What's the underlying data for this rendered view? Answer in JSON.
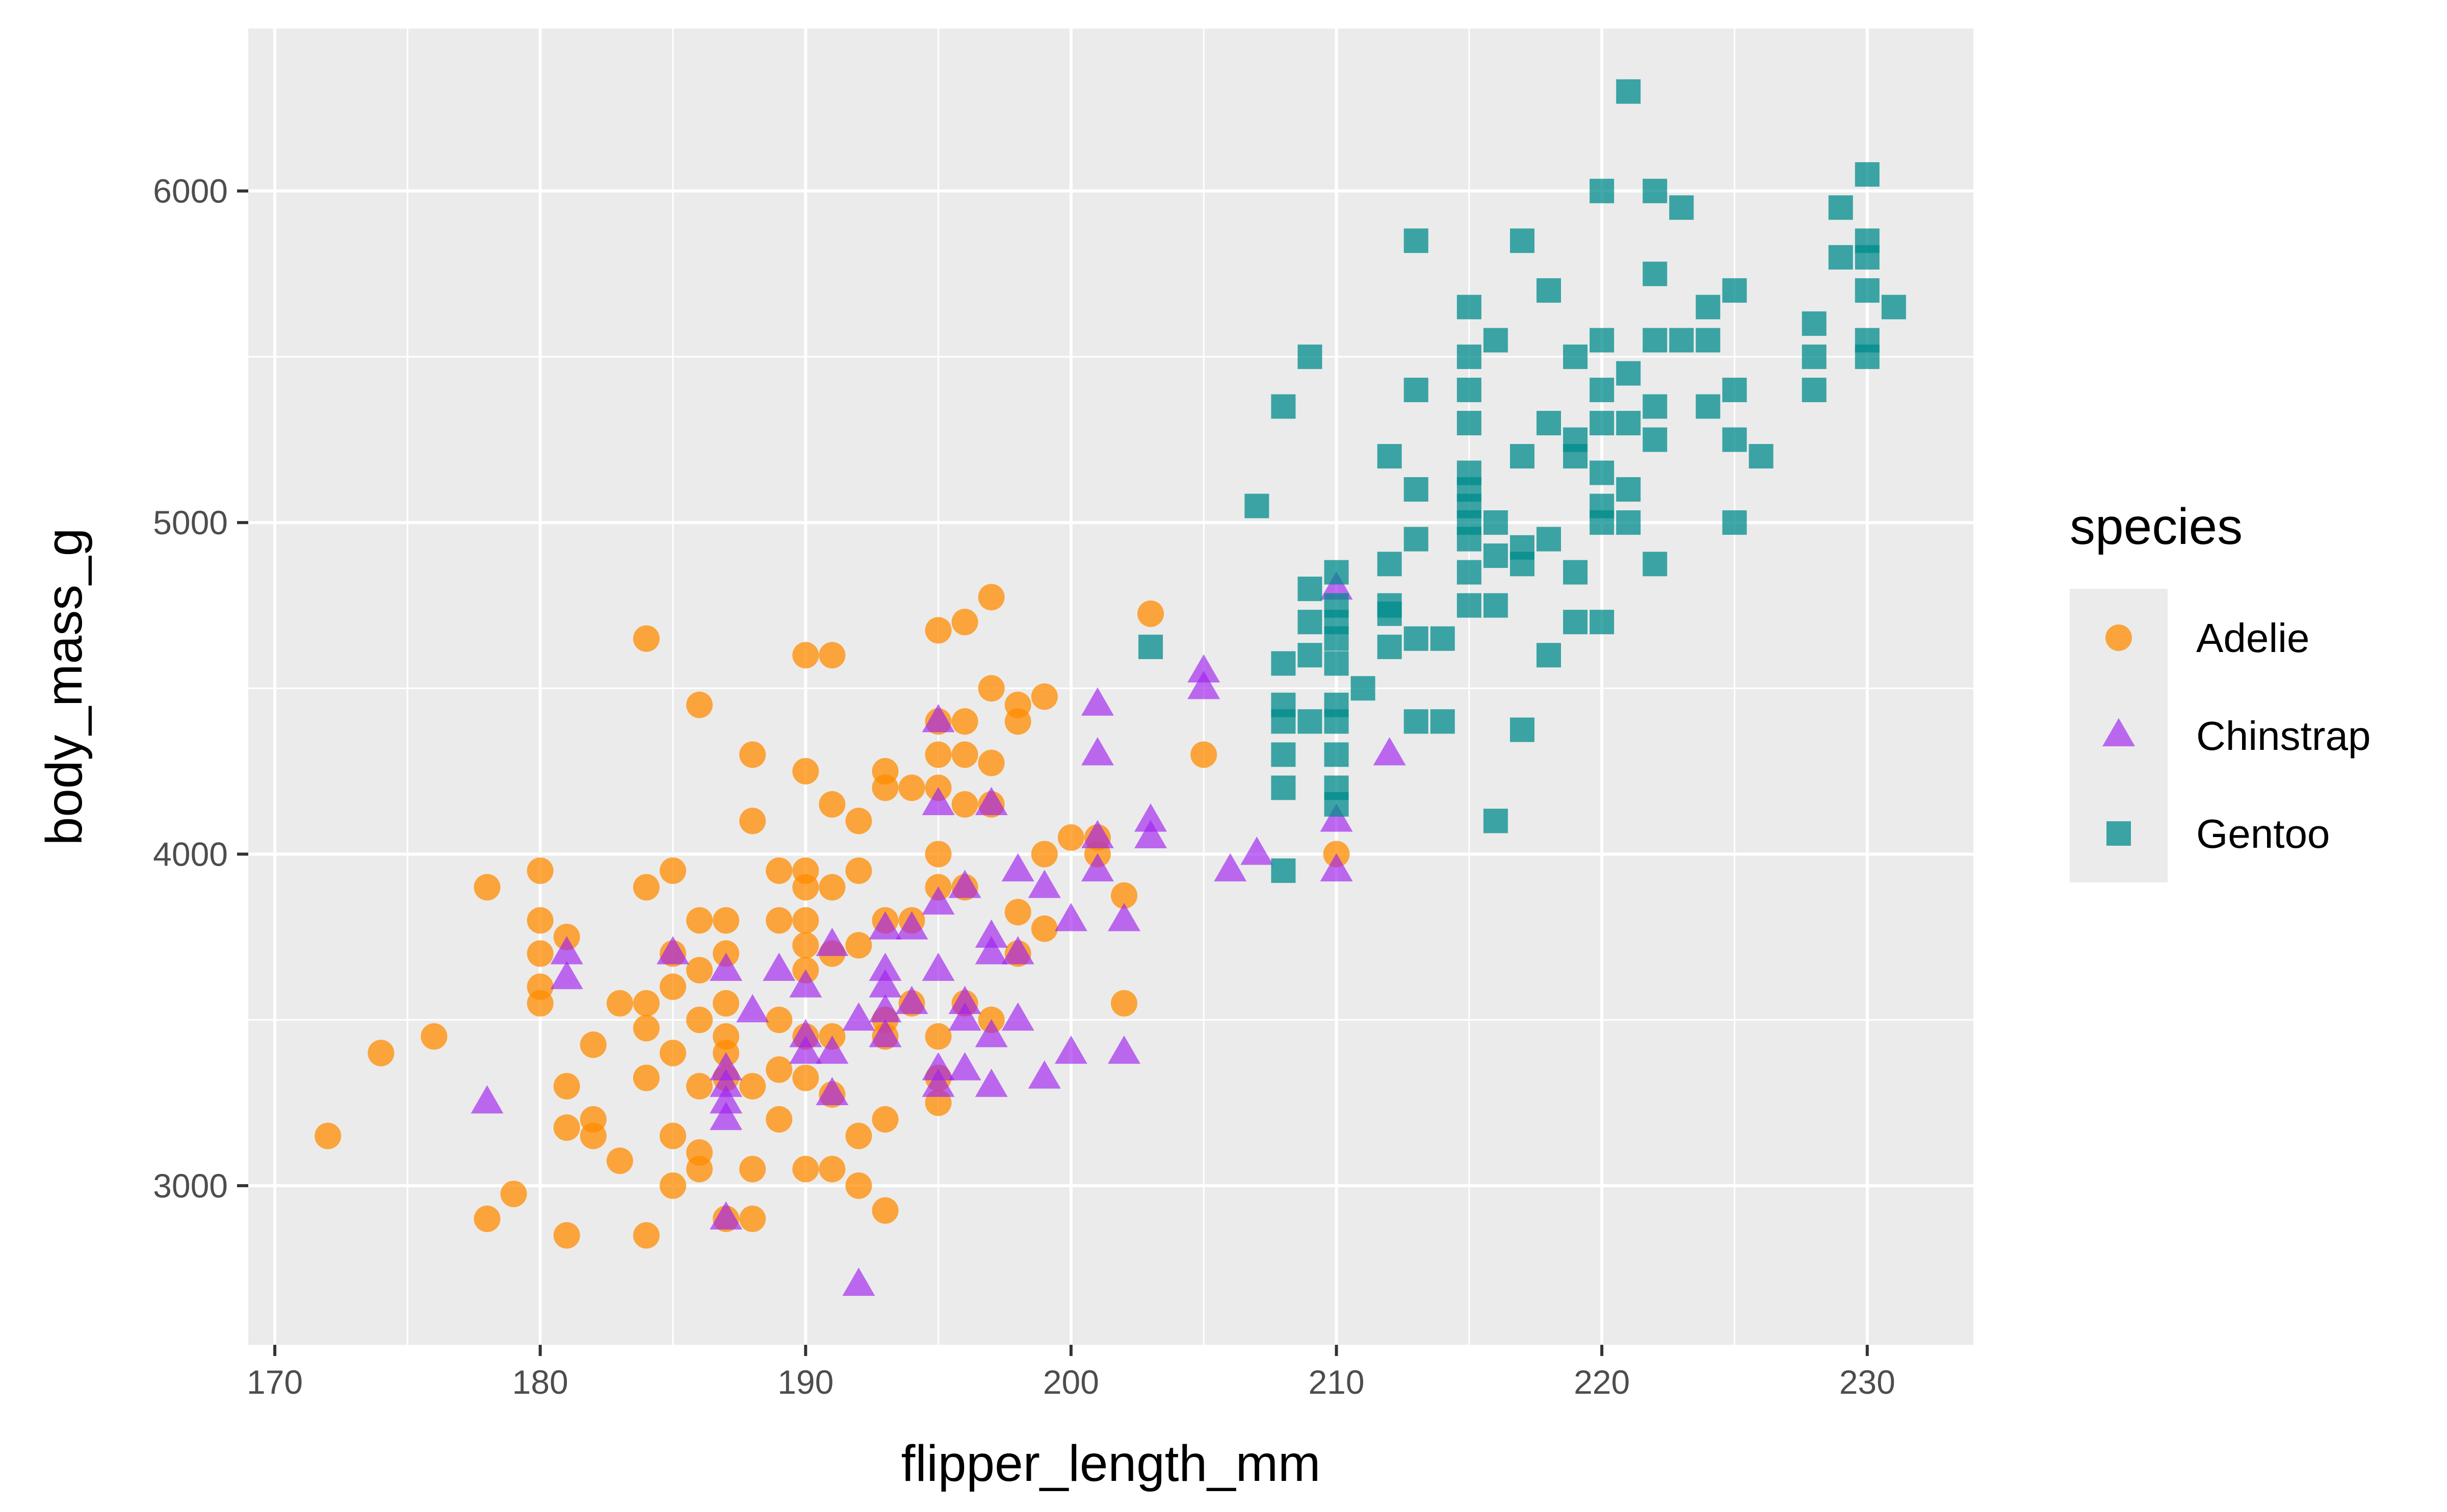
{
  "chart_data": {
    "type": "scatter",
    "title": "",
    "xlabel": "flipper_length_mm",
    "ylabel": "body_mass_g",
    "xlim": [
      169,
      234
    ],
    "ylim": [
      2520,
      6490
    ],
    "x_ticks": [
      170,
      180,
      190,
      200,
      210,
      220,
      230
    ],
    "y_ticks": [
      3000,
      4000,
      5000,
      6000
    ],
    "grid": true,
    "legend": {
      "title": "species",
      "position": "right"
    },
    "series": [
      {
        "name": "Adelie",
        "shape": "circle",
        "color": "#FF8C00",
        "points": [
          [
            172,
            3150
          ],
          [
            174,
            3400
          ],
          [
            176,
            3450
          ],
          [
            178,
            3900
          ],
          [
            178,
            2900
          ],
          [
            179,
            2975
          ],
          [
            180,
            3950
          ],
          [
            180,
            3800
          ],
          [
            180,
            3700
          ],
          [
            180,
            3600
          ],
          [
            180,
            3550
          ],
          [
            181,
            3750
          ],
          [
            181,
            3300
          ],
          [
            181,
            3175
          ],
          [
            181,
            2850
          ],
          [
            182,
            3425
          ],
          [
            182,
            3200
          ],
          [
            182,
            3150
          ],
          [
            183,
            3550
          ],
          [
            183,
            3075
          ],
          [
            184,
            4650
          ],
          [
            184,
            3900
          ],
          [
            184,
            3550
          ],
          [
            184,
            3475
          ],
          [
            184,
            3325
          ],
          [
            184,
            2850
          ],
          [
            185,
            3950
          ],
          [
            185,
            3700
          ],
          [
            185,
            3600
          ],
          [
            185,
            3400
          ],
          [
            185,
            3150
          ],
          [
            185,
            3000
          ],
          [
            186,
            4450
          ],
          [
            186,
            3800
          ],
          [
            186,
            3650
          ],
          [
            186,
            3500
          ],
          [
            186,
            3300
          ],
          [
            186,
            3100
          ],
          [
            186,
            3050
          ],
          [
            187,
            3800
          ],
          [
            187,
            3700
          ],
          [
            187,
            3550
          ],
          [
            187,
            3450
          ],
          [
            187,
            3400
          ],
          [
            187,
            3325
          ],
          [
            187,
            2900
          ],
          [
            188,
            4300
          ],
          [
            188,
            4100
          ],
          [
            188,
            3300
          ],
          [
            188,
            3050
          ],
          [
            188,
            2900
          ],
          [
            189,
            3950
          ],
          [
            189,
            3800
          ],
          [
            189,
            3500
          ],
          [
            189,
            3350
          ],
          [
            189,
            3200
          ],
          [
            190,
            4600
          ],
          [
            190,
            4250
          ],
          [
            190,
            3950
          ],
          [
            190,
            3900
          ],
          [
            190,
            3800
          ],
          [
            190,
            3725
          ],
          [
            190,
            3650
          ],
          [
            190,
            3450
          ],
          [
            190,
            3325
          ],
          [
            190,
            3050
          ],
          [
            191,
            4600
          ],
          [
            191,
            4150
          ],
          [
            191,
            3900
          ],
          [
            191,
            3700
          ],
          [
            191,
            3450
          ],
          [
            191,
            3275
          ],
          [
            191,
            3050
          ],
          [
            192,
            4100
          ],
          [
            192,
            3950
          ],
          [
            192,
            3725
          ],
          [
            192,
            3150
          ],
          [
            192,
            3000
          ],
          [
            193,
            4250
          ],
          [
            193,
            4200
          ],
          [
            193,
            3800
          ],
          [
            193,
            3500
          ],
          [
            193,
            3450
          ],
          [
            193,
            3200
          ],
          [
            193,
            2925
          ],
          [
            194,
            4200
          ],
          [
            194,
            3800
          ],
          [
            194,
            3550
          ],
          [
            195,
            4675
          ],
          [
            195,
            4400
          ],
          [
            195,
            4300
          ],
          [
            195,
            4200
          ],
          [
            195,
            4000
          ],
          [
            195,
            3900
          ],
          [
            195,
            3450
          ],
          [
            195,
            3325
          ],
          [
            195,
            3250
          ],
          [
            196,
            4700
          ],
          [
            196,
            4400
          ],
          [
            196,
            4300
          ],
          [
            196,
            4150
          ],
          [
            196,
            3900
          ],
          [
            196,
            3550
          ],
          [
            197,
            4775
          ],
          [
            197,
            4500
          ],
          [
            197,
            4275
          ],
          [
            197,
            4150
          ],
          [
            197,
            3500
          ],
          [
            198,
            4400
          ],
          [
            198,
            4450
          ],
          [
            198,
            3825
          ],
          [
            198,
            3700
          ],
          [
            199,
            4475
          ],
          [
            199,
            3775
          ],
          [
            199,
            4000
          ],
          [
            200,
            4050
          ],
          [
            201,
            4050
          ],
          [
            201,
            4000
          ],
          [
            202,
            3875
          ],
          [
            202,
            3550
          ],
          [
            203,
            4725
          ],
          [
            205,
            4300
          ],
          [
            210,
            4000
          ]
        ]
      },
      {
        "name": "Chinstrap",
        "shape": "triangle",
        "color": "#A020F0",
        "points": [
          [
            178,
            3250
          ],
          [
            181,
            3700
          ],
          [
            181,
            3625
          ],
          [
            185,
            3700
          ],
          [
            187,
            3650
          ],
          [
            187,
            3350
          ],
          [
            187,
            3300
          ],
          [
            187,
            3250
          ],
          [
            187,
            3200
          ],
          [
            187,
            2900
          ],
          [
            188,
            3525
          ],
          [
            189,
            3650
          ],
          [
            190,
            3600
          ],
          [
            190,
            3450
          ],
          [
            190,
            3400
          ],
          [
            191,
            3725
          ],
          [
            191,
            3400
          ],
          [
            191,
            3275
          ],
          [
            192,
            3500
          ],
          [
            192,
            2700
          ],
          [
            193,
            3775
          ],
          [
            193,
            3650
          ],
          [
            193,
            3600
          ],
          [
            193,
            3525
          ],
          [
            193,
            3450
          ],
          [
            194,
            3775
          ],
          [
            194,
            3550
          ],
          [
            195,
            4400
          ],
          [
            195,
            4150
          ],
          [
            195,
            3850
          ],
          [
            195,
            3650
          ],
          [
            195,
            3350
          ],
          [
            195,
            3300
          ],
          [
            196,
            3900
          ],
          [
            196,
            3550
          ],
          [
            196,
            3500
          ],
          [
            196,
            3350
          ],
          [
            197,
            4150
          ],
          [
            197,
            3750
          ],
          [
            197,
            3700
          ],
          [
            197,
            3450
          ],
          [
            197,
            3300
          ],
          [
            198,
            3950
          ],
          [
            198,
            3700
          ],
          [
            198,
            3500
          ],
          [
            199,
            3900
          ],
          [
            199,
            3325
          ],
          [
            200,
            3800
          ],
          [
            200,
            3400
          ],
          [
            201,
            4450
          ],
          [
            201,
            4300
          ],
          [
            201,
            4050
          ],
          [
            201,
            3950
          ],
          [
            202,
            3800
          ],
          [
            202,
            3400
          ],
          [
            203,
            4100
          ],
          [
            203,
            4050
          ],
          [
            205,
            4550
          ],
          [
            205,
            4500
          ],
          [
            206,
            3950
          ],
          [
            207,
            4000
          ],
          [
            210,
            4800
          ],
          [
            210,
            4100
          ],
          [
            210,
            3950
          ],
          [
            212,
            4300
          ]
        ]
      },
      {
        "name": "Gentoo",
        "shape": "square",
        "color": "#008B8B",
        "points": [
          [
            203,
            4625
          ],
          [
            207,
            5050
          ],
          [
            208,
            5350
          ],
          [
            208,
            4575
          ],
          [
            208,
            4450
          ],
          [
            208,
            4400
          ],
          [
            208,
            4300
          ],
          [
            208,
            4200
          ],
          [
            208,
            3950
          ],
          [
            209,
            5500
          ],
          [
            209,
            4800
          ],
          [
            209,
            4700
          ],
          [
            209,
            4600
          ],
          [
            209,
            4400
          ],
          [
            210,
            4850
          ],
          [
            210,
            4750
          ],
          [
            210,
            4700
          ],
          [
            210,
            4650
          ],
          [
            210,
            4575
          ],
          [
            210,
            4450
          ],
          [
            210,
            4400
          ],
          [
            210,
            4300
          ],
          [
            210,
            4200
          ],
          [
            210,
            4150
          ],
          [
            211,
            4500
          ],
          [
            212,
            5200
          ],
          [
            212,
            4875
          ],
          [
            212,
            4750
          ],
          [
            212,
            4725
          ],
          [
            212,
            4625
          ],
          [
            213,
            5850
          ],
          [
            213,
            5400
          ],
          [
            213,
            5100
          ],
          [
            213,
            4950
          ],
          [
            213,
            4650
          ],
          [
            213,
            4400
          ],
          [
            214,
            4650
          ],
          [
            214,
            4400
          ],
          [
            215,
            5650
          ],
          [
            215,
            5500
          ],
          [
            215,
            5400
          ],
          [
            215,
            5300
          ],
          [
            215,
            5150
          ],
          [
            215,
            5100
          ],
          [
            215,
            5050
          ],
          [
            215,
            5000
          ],
          [
            215,
            4950
          ],
          [
            215,
            4850
          ],
          [
            215,
            4750
          ],
          [
            216,
            5550
          ],
          [
            216,
            5000
          ],
          [
            216,
            4900
          ],
          [
            216,
            4750
          ],
          [
            216,
            4100
          ],
          [
            217,
            5850
          ],
          [
            217,
            5200
          ],
          [
            217,
            4925
          ],
          [
            217,
            4875
          ],
          [
            217,
            4375
          ],
          [
            218,
            5700
          ],
          [
            218,
            5300
          ],
          [
            218,
            4950
          ],
          [
            218,
            4600
          ],
          [
            219,
            5500
          ],
          [
            219,
            5250
          ],
          [
            219,
            5200
          ],
          [
            219,
            4850
          ],
          [
            219,
            4700
          ],
          [
            220,
            6000
          ],
          [
            220,
            5550
          ],
          [
            220,
            5400
          ],
          [
            220,
            5300
          ],
          [
            220,
            5150
          ],
          [
            220,
            5050
          ],
          [
            220,
            5000
          ],
          [
            220,
            4700
          ],
          [
            221,
            6300
          ],
          [
            221,
            5450
          ],
          [
            221,
            5300
          ],
          [
            221,
            5100
          ],
          [
            221,
            5000
          ],
          [
            222,
            6000
          ],
          [
            222,
            5750
          ],
          [
            222,
            5550
          ],
          [
            222,
            5350
          ],
          [
            222,
            5250
          ],
          [
            222,
            4875
          ],
          [
            223,
            5950
          ],
          [
            223,
            5550
          ],
          [
            224,
            5650
          ],
          [
            224,
            5550
          ],
          [
            224,
            5350
          ],
          [
            225,
            5700
          ],
          [
            225,
            5400
          ],
          [
            225,
            5250
          ],
          [
            225,
            5000
          ],
          [
            226,
            5200
          ],
          [
            228,
            5600
          ],
          [
            228,
            5500
          ],
          [
            228,
            5400
          ],
          [
            229,
            5950
          ],
          [
            229,
            5800
          ],
          [
            230,
            6050
          ],
          [
            230,
            5850
          ],
          [
            230,
            5800
          ],
          [
            230,
            5700
          ],
          [
            230,
            5550
          ],
          [
            230,
            5500
          ],
          [
            231,
            5650
          ]
        ]
      }
    ]
  }
}
